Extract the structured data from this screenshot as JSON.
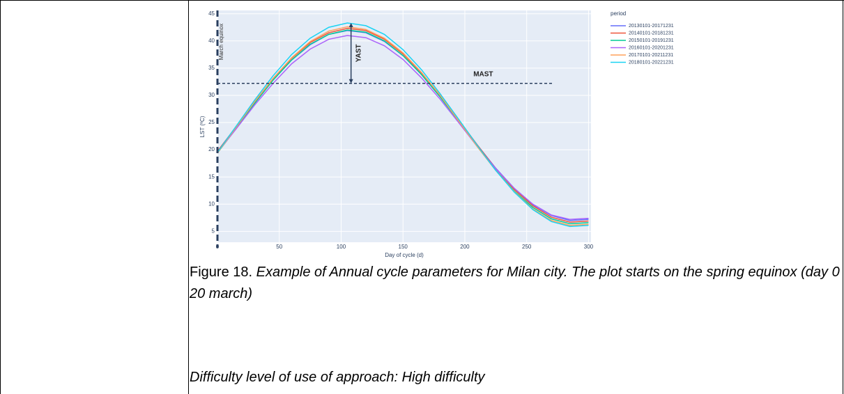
{
  "chart_data": {
    "type": "line",
    "xlabel": "Day of cycle (d)",
    "ylabel": "LST (ºC)",
    "legend_title": "period",
    "x": [
      0,
      15,
      30,
      45,
      60,
      75,
      90,
      105,
      120,
      135,
      150,
      165,
      180,
      195,
      210,
      225,
      240,
      255,
      270,
      285,
      300
    ],
    "series": [
      {
        "name": "20130101-20171231",
        "color": "#636efa",
        "values": [
          19.7,
          24.2,
          28.7,
          32.9,
          36.5,
          39.3,
          41.2,
          41.9,
          41.5,
          39.9,
          37.3,
          33.9,
          29.8,
          25.4,
          20.9,
          16.6,
          12.9,
          9.9,
          7.9,
          7.0,
          7.2
        ]
      },
      {
        "name": "20140101-20181231",
        "color": "#ef553b",
        "values": [
          19.7,
          24.2,
          28.8,
          33.1,
          36.8,
          39.7,
          41.5,
          42.3,
          41.9,
          40.3,
          37.6,
          34.1,
          30.0,
          25.5,
          20.9,
          16.5,
          12.7,
          9.7,
          7.6,
          6.7,
          6.9
        ]
      },
      {
        "name": "20150101-20191231",
        "color": "#00cc96",
        "values": [
          19.4,
          23.9,
          28.5,
          32.8,
          36.5,
          39.4,
          41.2,
          42.0,
          41.6,
          40.0,
          37.3,
          33.8,
          29.7,
          25.2,
          20.6,
          16.2,
          12.4,
          9.4,
          7.3,
          6.4,
          6.6
        ]
      },
      {
        "name": "20160101-20201231",
        "color": "#ab63fa",
        "values": [
          19.5,
          23.8,
          28.2,
          32.2,
          35.8,
          38.5,
          40.3,
          41.0,
          40.6,
          39.1,
          36.6,
          33.2,
          29.3,
          25.0,
          20.6,
          16.5,
          12.9,
          10.0,
          8.0,
          7.2,
          7.4
        ]
      },
      {
        "name": "20170101-20211231",
        "color": "#ffa15a",
        "values": [
          19.4,
          24.1,
          28.8,
          33.1,
          36.9,
          39.9,
          41.8,
          42.6,
          42.1,
          40.5,
          37.8,
          34.2,
          30.0,
          25.3,
          20.6,
          16.2,
          12.3,
          9.1,
          7.0,
          6.1,
          6.3
        ]
      },
      {
        "name": "20180101-20221231",
        "color": "#19d3f3",
        "values": [
          19.5,
          24.3,
          29.1,
          33.6,
          37.5,
          40.5,
          42.5,
          43.3,
          42.8,
          41.2,
          38.4,
          34.7,
          30.3,
          25.6,
          20.8,
          16.2,
          12.2,
          9.0,
          6.8,
          5.9,
          6.1
        ]
      }
    ],
    "xlim": [
      0,
      302
    ],
    "ylim": [
      3,
      45.6
    ],
    "xticks": [
      0,
      50,
      100,
      150,
      200,
      250,
      300
    ],
    "yticks": [
      5,
      10,
      15,
      20,
      25,
      30,
      35,
      40,
      45
    ],
    "grid": true,
    "annotations": [
      {
        "text": "March equinox",
        "x": 0
      },
      {
        "text": "YAST",
        "x": 108,
        "y": [
          32.2,
          43.3
        ]
      },
      {
        "text": "MAST",
        "y": 32.2,
        "x": [
          0,
          272
        ]
      }
    ]
  },
  "caption": {
    "label": "Figure 18.",
    "text": "Example of Annual cycle parameters for Milan city. The plot starts on the spring equinox (day 0 = 20 march)"
  },
  "difficulty": "Difficulty level of use of approach: High difficulty"
}
